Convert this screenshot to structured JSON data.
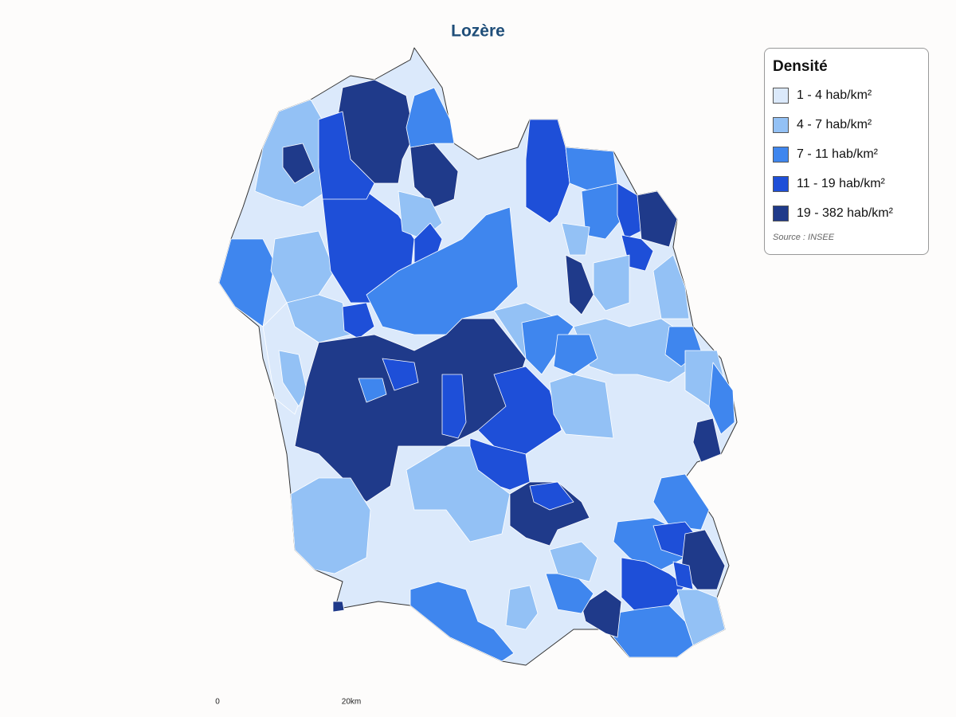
{
  "title": "Lozère",
  "legend": {
    "title": "Densité",
    "items": [
      {
        "label": "1 - 4 hab/km²",
        "color": "#dbe9fb"
      },
      {
        "label": "4 - 7 hab/km²",
        "color": "#93c1f5"
      },
      {
        "label": "7 - 11 hab/km²",
        "color": "#3f86ee"
      },
      {
        "label": "11 - 19 hab/km²",
        "color": "#1e4fd8"
      },
      {
        "label": "19 - 382 hab/km²",
        "color": "#1f3a8a"
      }
    ]
  },
  "source": "Source : INSEE",
  "scale_bar": {
    "labels": [
      "0",
      "20km"
    ]
  }
}
